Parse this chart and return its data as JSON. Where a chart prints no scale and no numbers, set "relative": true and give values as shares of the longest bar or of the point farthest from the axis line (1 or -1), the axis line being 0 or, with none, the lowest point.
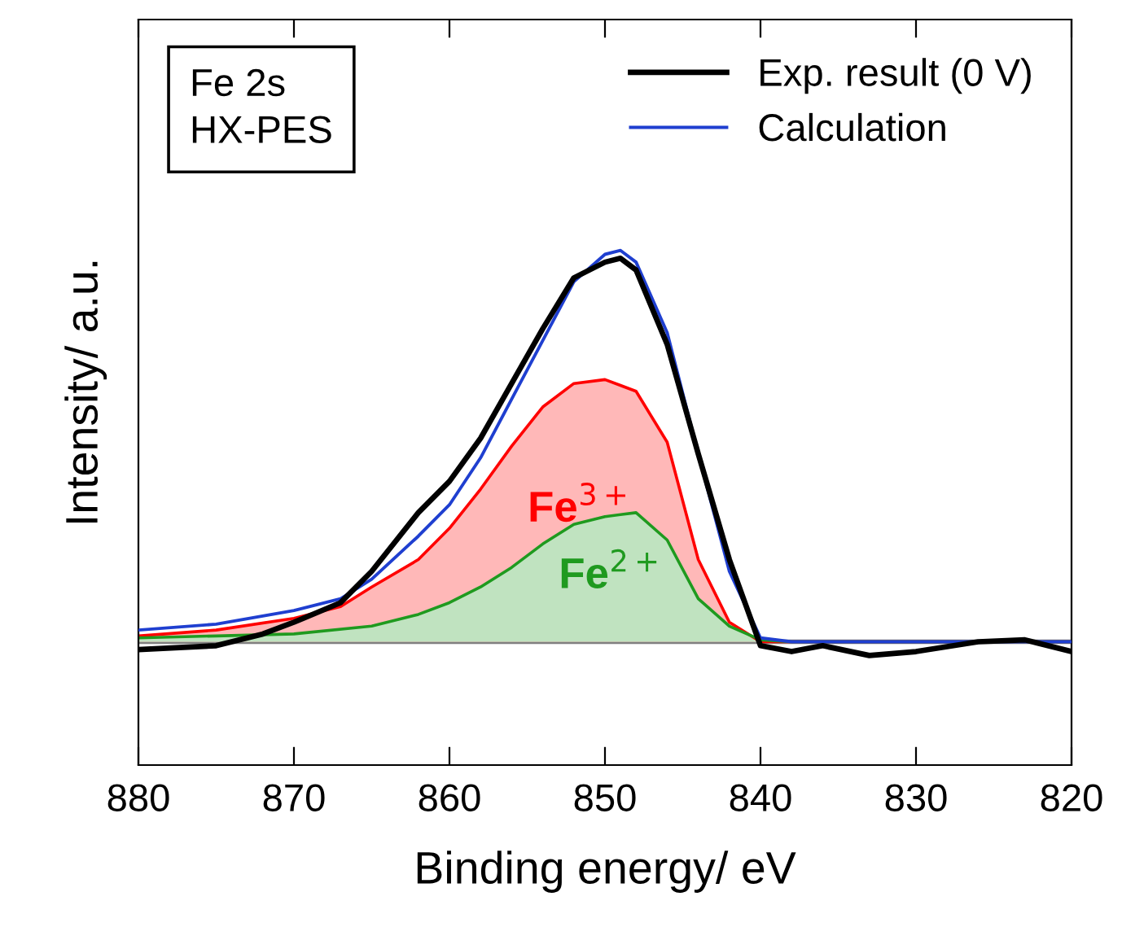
{
  "chart_data": {
    "type": "line",
    "relative": true,
    "xlabel": "Binding energy/ eV",
    "ylabel": "Intensity/ a.u.",
    "xlim": [
      880,
      820
    ],
    "xticks": [
      880,
      870,
      860,
      850,
      840,
      830,
      820
    ],
    "tick_labels": "x",
    "legend": "top right",
    "grid": false,
    "annotations": [
      "Fe 2s\nHX-PES"
    ],
    "series": [
      {
        "name": "Fe$^{3+}$",
        "type": "area",
        "color": "#ff0000",
        "x": [
          880,
          875,
          870,
          867,
          865,
          862,
          860,
          858,
          856,
          854,
          852,
          850,
          848,
          846,
          844,
          842,
          840,
          820
        ],
        "values": [
          0.015,
          0.03,
          0.06,
          0.09,
          0.14,
          0.21,
          0.29,
          0.39,
          0.5,
          0.6,
          0.66,
          0.67,
          0.64,
          0.51,
          0.21,
          0.05,
          0,
          0
        ]
      },
      {
        "name": "Fe$^{2+}$",
        "type": "area",
        "color": "#1f9a1f",
        "x": [
          880,
          875,
          870,
          865,
          862,
          860,
          858,
          856,
          854,
          852,
          850,
          848,
          846,
          844,
          842,
          840,
          838,
          820
        ],
        "values": [
          0.01,
          0.015,
          0.02,
          0.04,
          0.07,
          0.1,
          0.14,
          0.19,
          0.25,
          0.3,
          0.32,
          0.33,
          0.26,
          0.11,
          0.04,
          0.005,
          0,
          0
        ]
      },
      {
        "name": "Calculation",
        "color": "#1f3fd0",
        "x": [
          880,
          875,
          870,
          867,
          865,
          862,
          860,
          858,
          856,
          854,
          852,
          850,
          849,
          848,
          846,
          844,
          842,
          840,
          838,
          820
        ],
        "values": [
          0.03,
          0.045,
          0.08,
          0.11,
          0.16,
          0.27,
          0.35,
          0.47,
          0.62,
          0.77,
          0.92,
          0.99,
          1.0,
          0.97,
          0.79,
          0.48,
          0.18,
          0.01,
          0,
          0
        ]
      },
      {
        "name": "Exp. result (0 V)",
        "color": "#000000",
        "x": [
          880,
          875,
          872,
          870,
          867,
          865,
          862,
          860,
          858,
          856,
          854,
          852,
          850,
          849,
          848,
          846,
          844,
          842,
          840,
          838,
          836,
          833,
          830,
          826,
          823,
          820
        ],
        "values": [
          -0.02,
          -0.01,
          0.02,
          0.05,
          0.1,
          0.18,
          0.33,
          0.41,
          0.52,
          0.66,
          0.8,
          0.93,
          0.97,
          0.98,
          0.95,
          0.76,
          0.48,
          0.21,
          -0.01,
          -0.025,
          -0.01,
          -0.035,
          -0.025,
          0,
          0.005,
          -0.025
        ]
      }
    ]
  }
}
